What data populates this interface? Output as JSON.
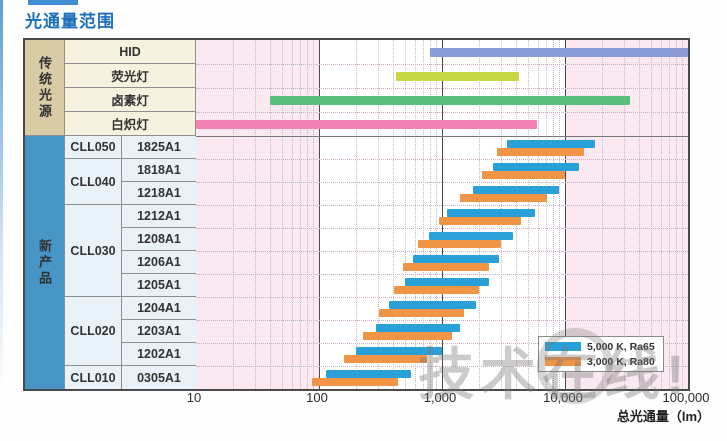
{
  "title": "光通量范围",
  "colors": {
    "accent_title": "#1c6fbb",
    "series_ra65": "#29a0d8",
    "series_ra80": "#f09445",
    "hid": "#8a9bd8",
    "fluorescent": "#c8d845",
    "halogen": "#5abe7d",
    "incandescent": "#f283b4",
    "plot_pink": "#fbe9f1",
    "band_white": "#ffffff",
    "table_trad_group_bg": "#d8cba6",
    "table_trad_cell_bg": "#f7f2e0",
    "table_new_group_bg": "#4695c4",
    "table_new_cell_bg": "#e9f2f9"
  },
  "table": {
    "traditional_group_label": "传统光源",
    "new_group_label": "新产品",
    "traditional_rows": [
      "HID",
      "荧光灯",
      "卤素灯",
      "白炽灯"
    ],
    "product_groups": [
      {
        "label": "CLL050",
        "models": [
          "1825A1"
        ]
      },
      {
        "label": "CLL040",
        "models": [
          "1818A1",
          "1218A1"
        ]
      },
      {
        "label": "CLL030",
        "models": [
          "1212A1",
          "1208A1",
          "1206A1",
          "1205A1"
        ]
      },
      {
        "label": "CLL020",
        "models": [
          "1204A1",
          "1203A1",
          "1202A1"
        ]
      },
      {
        "label": "CLL010",
        "models": [
          "0305A1"
        ]
      }
    ]
  },
  "legend": {
    "entries": [
      {
        "label": "5,000 K, Ra65",
        "color_key": "series_ra65"
      },
      {
        "label": "3,000 K, Ra80",
        "color_key": "series_ra80"
      }
    ]
  },
  "axis": {
    "ticks": [
      "10",
      "100",
      "1,000",
      "10,000",
      "100,000"
    ],
    "label": "总光通量（lm）"
  },
  "watermark": "技术在线!",
  "chart_data": {
    "type": "bar",
    "orientation": "horizontal-range",
    "x_scale": "log",
    "x_range_lm": [
      10,
      100000
    ],
    "x_ticks": [
      "10",
      "100",
      "1,000",
      "10,000",
      "100,000"
    ],
    "xlabel": "总光通量（lm）",
    "highlight_band_lm": [
      100,
      10000
    ],
    "grid": "log minor dotted, major solid at 100 / 1,000 / 10,000",
    "legend_position": "bottom-right inside plot",
    "traditional_series": [
      {
        "label": "HID",
        "range_lm": [
          800,
          100000
        ],
        "color_key": "hid"
      },
      {
        "label": "荧光灯",
        "range_lm": [
          420,
          4200
        ],
        "color_key": "fluorescent"
      },
      {
        "label": "卤素灯",
        "range_lm": [
          40,
          34000
        ],
        "color_key": "halogen"
      },
      {
        "label": "白炽灯",
        "range_lm": [
          10,
          5900
        ],
        "color_key": "incandescent"
      }
    ],
    "product_series_names": [
      "5,000 K, Ra65",
      "3,000 K, Ra80"
    ],
    "products": [
      {
        "group": "CLL050",
        "model": "1825A1",
        "ra65_lm": [
          3400,
          17500
        ],
        "ra80_lm": [
          2800,
          14200
        ]
      },
      {
        "group": "CLL040",
        "model": "1818A1",
        "ra65_lm": [
          2600,
          12900
        ],
        "ra80_lm": [
          2100,
          10000
        ]
      },
      {
        "group": "CLL040",
        "model": "1218A1",
        "ra65_lm": [
          1800,
          8900
        ],
        "ra80_lm": [
          1400,
          7200
        ]
      },
      {
        "group": "CLL030",
        "model": "1212A1",
        "ra65_lm": [
          1100,
          5700
        ],
        "ra80_lm": [
          940,
          4400
        ]
      },
      {
        "group": "CLL030",
        "model": "1208A1",
        "ra65_lm": [
          790,
          3800
        ],
        "ra80_lm": [
          640,
          3000
        ]
      },
      {
        "group": "CLL030",
        "model": "1206A1",
        "ra65_lm": [
          580,
          2900
        ],
        "ra80_lm": [
          480,
          2400
        ]
      },
      {
        "group": "CLL030",
        "model": "1205A1",
        "ra65_lm": [
          500,
          2400
        ],
        "ra80_lm": [
          410,
          2000
        ]
      },
      {
        "group": "CLL020",
        "model": "1204A1",
        "ra65_lm": [
          370,
          1900
        ],
        "ra80_lm": [
          310,
          1500
        ]
      },
      {
        "group": "CLL020",
        "model": "1203A1",
        "ra65_lm": [
          290,
          1400
        ],
        "ra80_lm": [
          230,
          1200
        ]
      },
      {
        "group": "CLL020",
        "model": "1202A1",
        "ra65_lm": [
          200,
          1000
        ],
        "ra80_lm": [
          160,
          760
        ]
      },
      {
        "group": "CLL010",
        "model": "0305A1",
        "ra65_lm": [
          115,
          560
        ],
        "ra80_lm": [
          88,
          440
        ]
      }
    ]
  }
}
